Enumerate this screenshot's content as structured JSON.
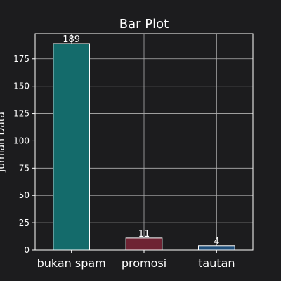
{
  "colors": {
    "background": "#1c1c1e",
    "plot_background": "#1c1c1e",
    "grid": "#b0b0b0",
    "axis": "#ffffff",
    "text": "#ffffff",
    "bar_edge": "#ffffff"
  },
  "chart_data": {
    "type": "bar",
    "title": "Bar Plot",
    "xlabel": "",
    "ylabel": "Jumlah Data",
    "categories": [
      "bukan spam",
      "promosi",
      "tautan"
    ],
    "values": [
      189,
      11,
      4
    ],
    "data_labels": [
      "189",
      "11",
      "4"
    ],
    "bar_colors": [
      "#146b6b",
      "#6e2333",
      "#1f4e79"
    ],
    "ylim": [
      0,
      198
    ],
    "yticks": [
      0,
      25,
      50,
      75,
      100,
      125,
      150,
      175
    ],
    "ytick_labels": [
      "0",
      "25",
      "50",
      "75",
      "100",
      "125",
      "150",
      "175"
    ],
    "grid": true,
    "legend": "none"
  }
}
